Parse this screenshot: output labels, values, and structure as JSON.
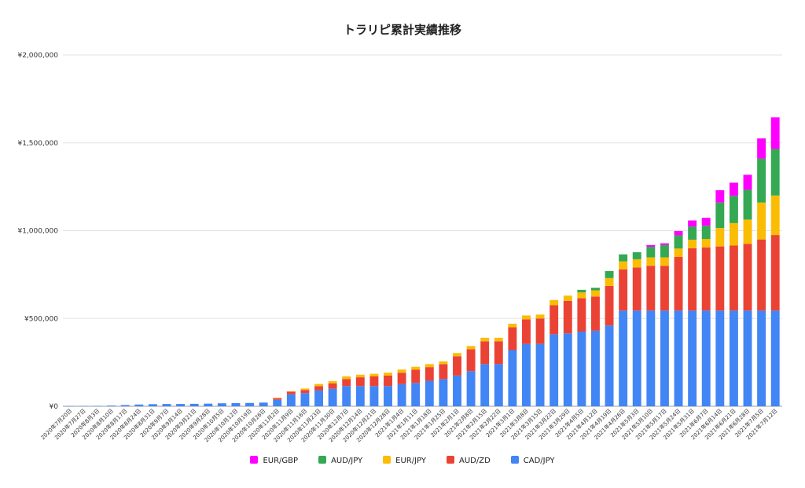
{
  "chart_data": {
    "type": "bar",
    "stacked": true,
    "title": "トラリピ累計実績推移",
    "xlabel": "",
    "ylabel": "",
    "ylim": [
      0,
      2000000
    ],
    "yticks": [
      "¥0",
      "¥500,000",
      "¥1,000,000",
      "¥1,500,000",
      "¥2,000,000"
    ],
    "ytick_values": [
      0,
      500000,
      1000000,
      1500000,
      2000000
    ],
    "grid": true,
    "legend_position": "bottom",
    "categories": [
      "2020年7月20日",
      "2020年7月27日",
      "2020年8月3日",
      "2020年8月10日",
      "2020年8月17日",
      "2020年8月24日",
      "2020年8月31日",
      "2020年9月7日",
      "2020年9月14日",
      "2020年9月21日",
      "2020年9月28日",
      "2020年10月5日",
      "2020年10月12日",
      "2020年10月19日",
      "2020年10月26日",
      "2020年11月2日",
      "2020年11月9日",
      "2020年11月16日",
      "2020年11月23日",
      "2020年11月30日",
      "2020年12月7日",
      "2020年12月14日",
      "2020年12月21日",
      "2020年12月28日",
      "2021年1月4日",
      "2021年1月11日",
      "2021年1月18日",
      "2021年1月25日",
      "2021年2月1日",
      "2021年2月8日",
      "2021年2月15日",
      "2021年2月22日",
      "2021年3月1日",
      "2021年3月8日",
      "2021年3月15日",
      "2021年3月22日",
      "2021年3月29日",
      "2021年4月5日",
      "2021年4月12日",
      "2021年4月19日",
      "2021年4月26日",
      "2021年5月3日",
      "2021年5月10日",
      "2021年5月17日",
      "2021年5月24日",
      "2021年5月31日",
      "2021年6月7日",
      "2021年6月14日",
      "2021年6月21日",
      "2021年6月28日",
      "2021年7月5日",
      "2021年7月12日"
    ],
    "series": [
      {
        "name": "CAD/JPY",
        "color": "#4285F4",
        "values": [
          1000,
          1500,
          2000,
          4000,
          7000,
          10000,
          12000,
          13000,
          13000,
          14000,
          15000,
          17000,
          18000,
          19000,
          21000,
          37000,
          68000,
          75000,
          90000,
          100000,
          115000,
          115000,
          115000,
          115000,
          126000,
          133000,
          145000,
          155000,
          175000,
          200000,
          240000,
          240000,
          320000,
          355000,
          355000,
          410000,
          415000,
          425000,
          430000,
          460000,
          545000,
          545000,
          545000,
          545000,
          545000,
          545000,
          545000,
          545000,
          545000,
          545000,
          545000,
          545000
        ]
      },
      {
        "name": "AUD/ZD",
        "color": "#EA4335",
        "values": [
          0,
          0,
          0,
          0,
          0,
          0,
          0,
          0,
          0,
          0,
          0,
          0,
          0,
          0,
          0,
          10000,
          15000,
          18000,
          25000,
          30000,
          40000,
          50000,
          55000,
          60000,
          65000,
          75000,
          78000,
          85000,
          110000,
          125000,
          130000,
          130000,
          130000,
          140000,
          145000,
          165000,
          185000,
          190000,
          195000,
          225000,
          235000,
          245000,
          255000,
          255000,
          305000,
          355000,
          360000,
          365000,
          370000,
          380000,
          405000,
          430000
        ]
      },
      {
        "name": "EUR/JPY",
        "color": "#FBBC04",
        "values": [
          0,
          0,
          0,
          0,
          0,
          0,
          0,
          0,
          0,
          0,
          0,
          0,
          0,
          0,
          0,
          1000,
          2000,
          8000,
          12000,
          13000,
          15000,
          15000,
          15000,
          16000,
          18000,
          17000,
          17000,
          16000,
          18000,
          18000,
          20000,
          20000,
          20000,
          22000,
          22000,
          30000,
          30000,
          33000,
          35000,
          45000,
          45000,
          47000,
          48000,
          48000,
          48000,
          48000,
          48000,
          105000,
          128000,
          138000,
          210000,
          225000
        ]
      },
      {
        "name": "AUD/JPY",
        "color": "#34A853",
        "values": [
          0,
          0,
          0,
          0,
          0,
          0,
          0,
          0,
          0,
          0,
          0,
          0,
          0,
          0,
          0,
          0,
          0,
          0,
          0,
          0,
          0,
          0,
          0,
          0,
          0,
          0,
          0,
          0,
          0,
          0,
          0,
          0,
          0,
          0,
          0,
          0,
          0,
          15000,
          15000,
          40000,
          40000,
          40000,
          60000,
          70000,
          75000,
          75000,
          75000,
          145000,
          155000,
          170000,
          250000,
          265000
        ]
      },
      {
        "name": "EUR/GBP",
        "color": "#FF00FF",
        "values": [
          0,
          0,
          0,
          0,
          0,
          0,
          0,
          0,
          0,
          0,
          0,
          0,
          0,
          0,
          0,
          0,
          0,
          0,
          0,
          0,
          0,
          0,
          0,
          0,
          0,
          0,
          0,
          0,
          0,
          0,
          0,
          0,
          0,
          0,
          0,
          0,
          0,
          0,
          0,
          0,
          0,
          0,
          10000,
          10000,
          25000,
          35000,
          45000,
          70000,
          75000,
          85000,
          115000,
          180000
        ]
      }
    ],
    "legend_order": [
      "EUR/GBP",
      "AUD/JPY",
      "EUR/JPY",
      "AUD/ZD",
      "CAD/JPY"
    ]
  }
}
